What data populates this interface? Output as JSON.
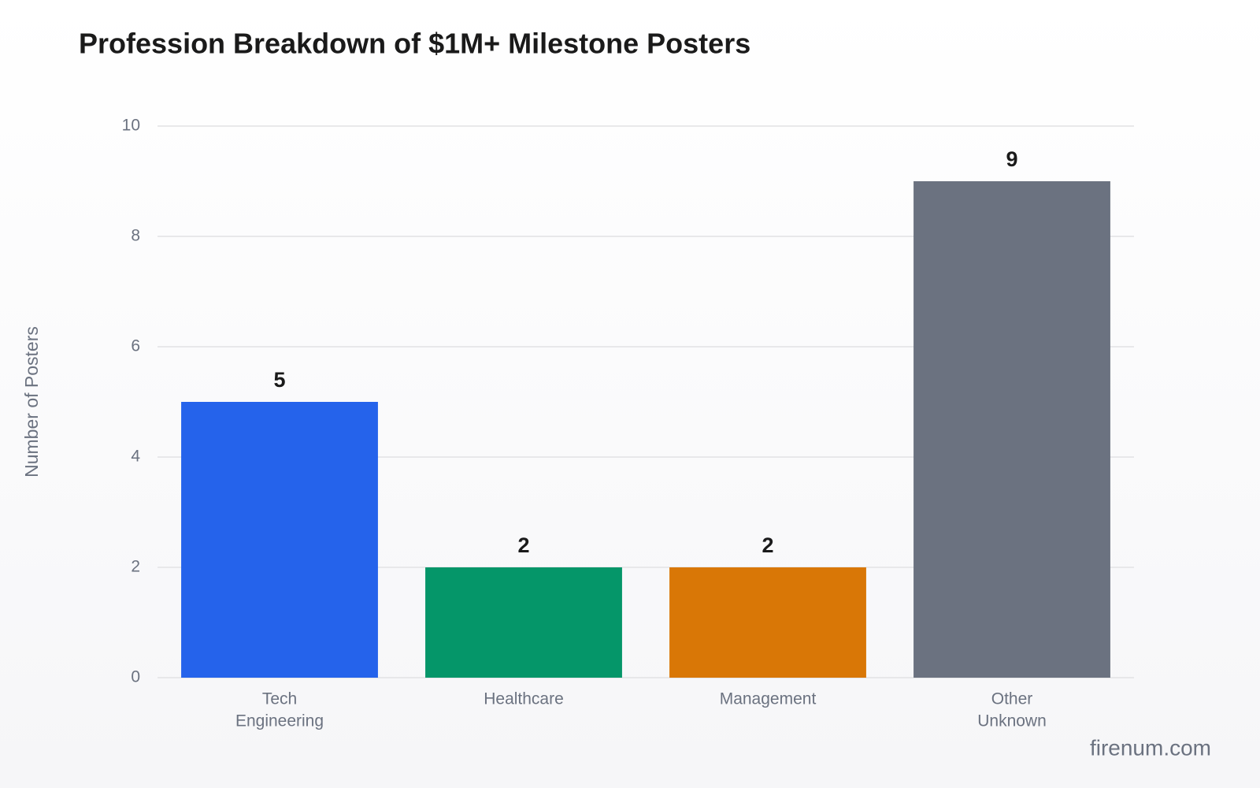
{
  "chart_data": {
    "type": "bar",
    "title": "Profession Breakdown of $1M+ Milestone Posters",
    "y_label": "Number of Posters",
    "categories": [
      [
        "Tech",
        "Engineering"
      ],
      [
        "Healthcare"
      ],
      [
        "Management"
      ],
      [
        "Other",
        "Unknown"
      ]
    ],
    "values": [
      5,
      2,
      2,
      9
    ],
    "colors": [
      "#2563eb",
      "#059669",
      "#d97706",
      "#6b7280"
    ],
    "ylim": [
      0,
      10
    ],
    "yticks": [
      0,
      2,
      4,
      6,
      8,
      10
    ],
    "grid": true,
    "watermark": "firenum.com"
  }
}
